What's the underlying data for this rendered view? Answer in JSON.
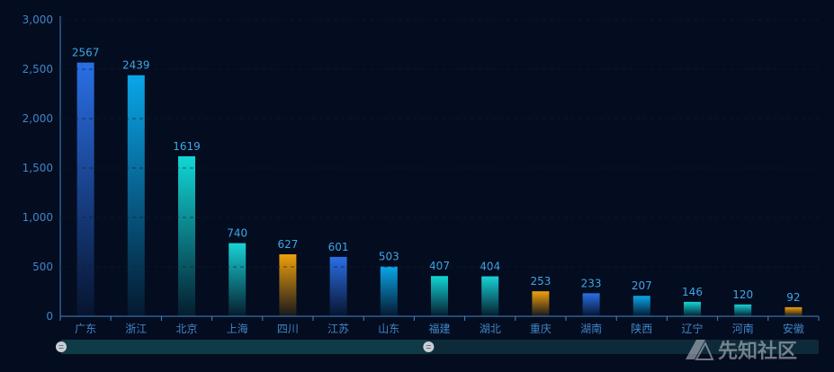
{
  "chart_data": {
    "type": "bar",
    "categories": [
      "广东",
      "浙江",
      "北京",
      "上海",
      "四川",
      "江苏",
      "山东",
      "福建",
      "湖北",
      "重庆",
      "湖南",
      "陕西",
      "辽宁",
      "河南",
      "安徽"
    ],
    "values": [
      2567,
      2439,
      1619,
      740,
      627,
      601,
      503,
      407,
      404,
      253,
      233,
      207,
      146,
      120,
      92
    ],
    "ylim": [
      0,
      3000
    ],
    "yticks": [
      0,
      500,
      1000,
      1500,
      2000,
      2500,
      3000
    ],
    "ytick_labels": [
      "0",
      "500",
      "1,000",
      "1,500",
      "2,000",
      "2,500",
      "3,000"
    ],
    "grid": true,
    "legend": "none",
    "data_labels": true,
    "bar_colors": [
      "#2a6fe6",
      "#0aa6e8",
      "#12d6d6",
      "#18d2d6",
      "#f0a00c",
      "#2a6fe6",
      "#0aa6e8",
      "#12d6d6",
      "#18d2d6",
      "#f0a00c",
      "#2a6fe6",
      "#0aa6e8",
      "#12d6d6",
      "#18d2d6",
      "#f0a00c"
    ],
    "zoom_slider": {
      "start": 0,
      "end": 0.5
    }
  },
  "colors": {
    "background": "#040c1f",
    "axis": "#3f86c9",
    "grid": "#1a2a44",
    "slider_track": "#0d2a3a",
    "slider_fill": "#0f3a48"
  },
  "watermark": {
    "icon": "site-logo-icon",
    "text": "先知社区"
  }
}
